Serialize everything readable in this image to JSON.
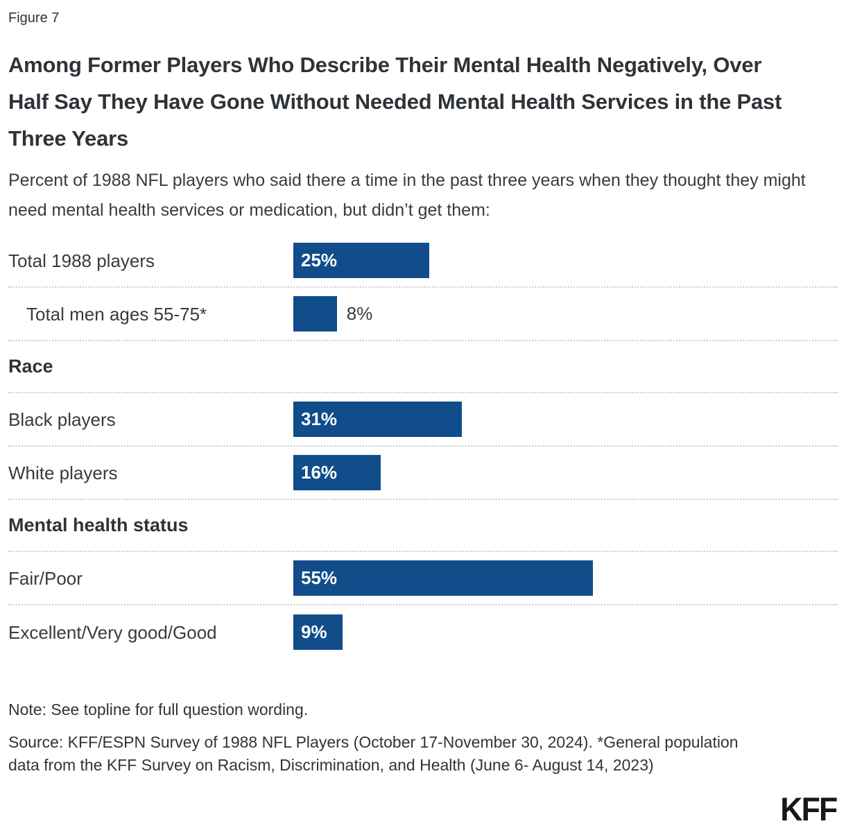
{
  "figure_label": "Figure 7",
  "title": "Among Former Players Who Describe Their Mental Health Negatively, Over Half Say They Have Gone Without Needed Mental Health Services in the Past Three Years",
  "subtitle": "Percent of 1988 NFL players who said there a time in the past three years when they thought they might need mental health services or medication, but didn’t get them:",
  "note": "Note: See topline for full question wording.",
  "source": "Source: KFF/ESPN Survey of 1988 NFL Players (October 17-November 30, 2024). *General population data from the KFF Survey on Racism, Discrimination, and Health (June 6- August 14, 2023)",
  "logo_text": "KFF",
  "colors": {
    "bar": "#104D8A",
    "text": "#333333",
    "separator": "#CCCCCC"
  },
  "chart_data": {
    "type": "bar",
    "orientation": "horizontal",
    "unit": "percent",
    "xlim": [
      0,
      100
    ],
    "grid": false,
    "legend": "none",
    "categories": [
      "Total 1988 players",
      "Total men ages 55-75*",
      "Black players",
      "White players",
      "Fair/Poor",
      "Excellent/Very good/Good"
    ],
    "values": [
      25,
      8,
      31,
      16,
      55,
      9
    ],
    "rows": [
      {
        "kind": "bar",
        "label": "Total 1988 players",
        "value": 25,
        "display": "25%",
        "indent": false,
        "value_position": "inside"
      },
      {
        "kind": "bar",
        "label": "Total men ages 55-75*",
        "value": 8,
        "display": "8%",
        "indent": true,
        "value_position": "outside"
      },
      {
        "kind": "header",
        "label": "Race"
      },
      {
        "kind": "bar",
        "label": "Black players",
        "value": 31,
        "display": "31%",
        "indent": false,
        "value_position": "inside"
      },
      {
        "kind": "bar",
        "label": "White players",
        "value": 16,
        "display": "16%",
        "indent": false,
        "value_position": "inside"
      },
      {
        "kind": "header",
        "label": "Mental health status"
      },
      {
        "kind": "bar",
        "label": "Fair/Poor",
        "value": 55,
        "display": "55%",
        "indent": false,
        "value_position": "inside"
      },
      {
        "kind": "bar",
        "label": "Excellent/Very good/Good",
        "value": 9,
        "display": "9%",
        "indent": false,
        "value_position": "inside"
      }
    ]
  }
}
